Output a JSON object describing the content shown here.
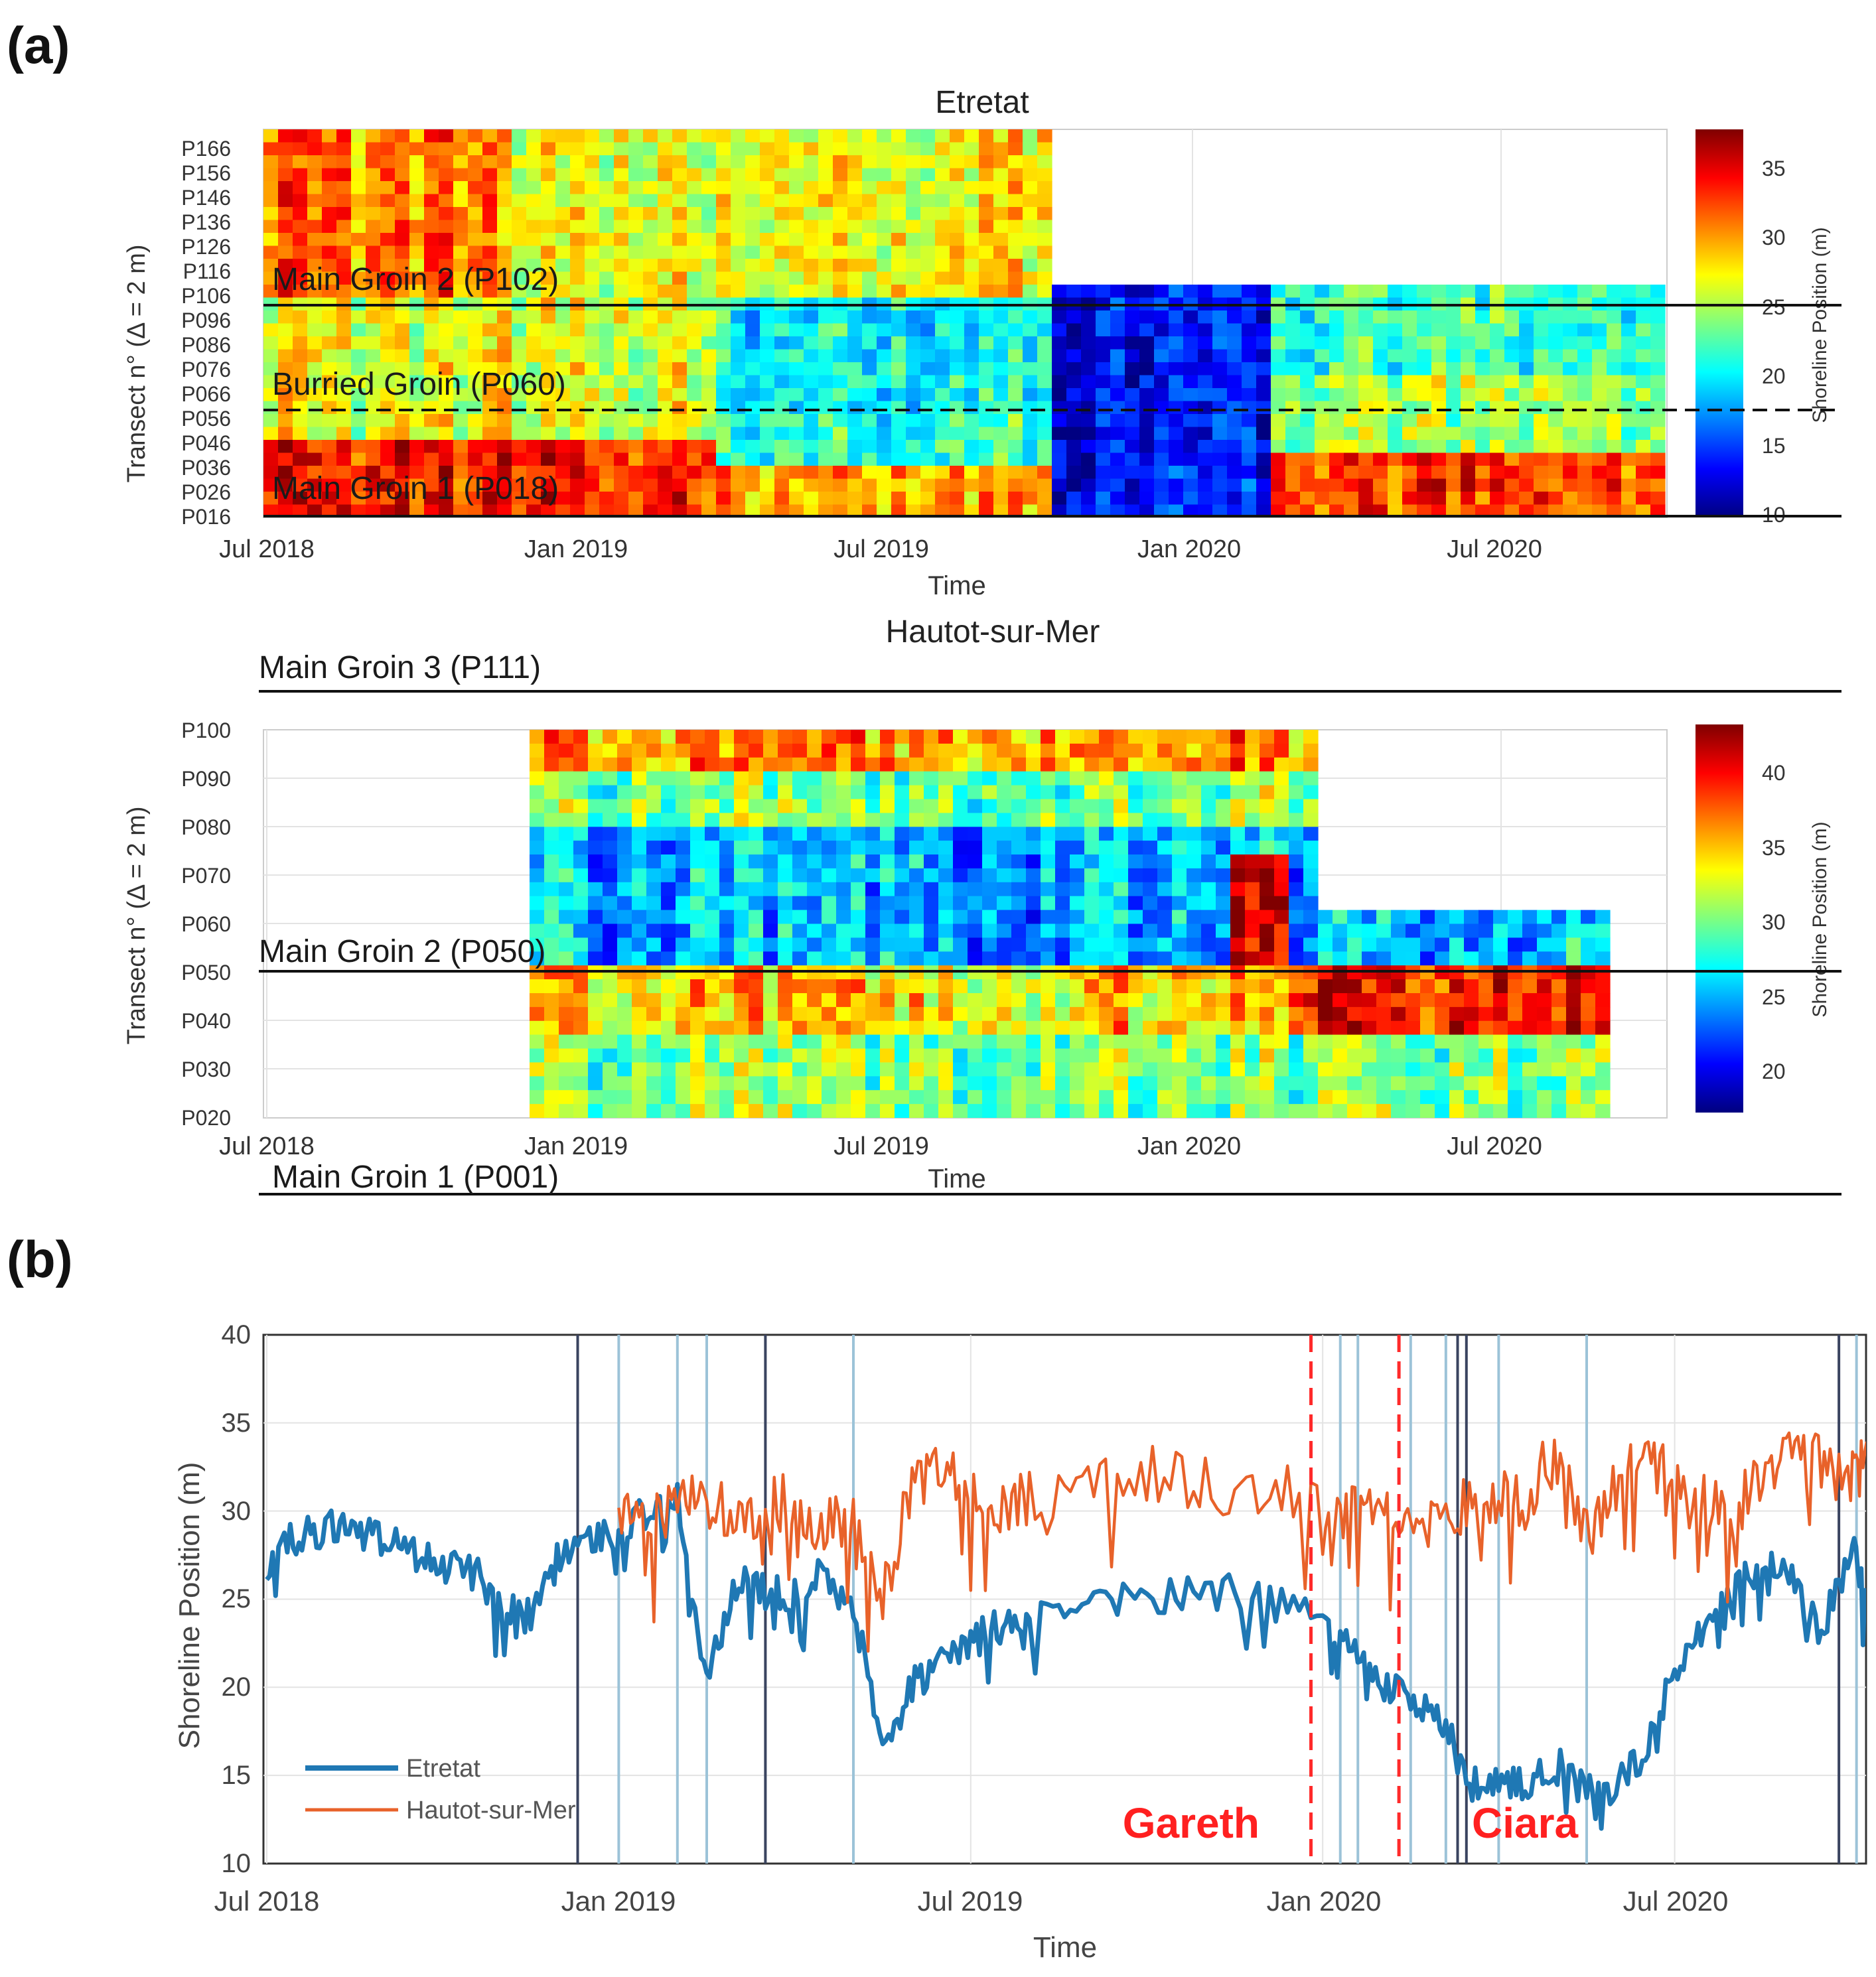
{
  "panel_labels": {
    "a": "(a)",
    "b": "(b)"
  },
  "colors": {
    "etretat_line": "#1f78b4",
    "hautot_line": "#e8622a",
    "storm_marker": "#ff2a2a",
    "event_line_dark": "#3a4460",
    "event_line_light": "#9cc3d8",
    "grid": "#e3e3e3"
  },
  "chart_data": [
    {
      "id": "etretat-heatmap",
      "type": "heatmap",
      "title": "Etretat",
      "xlabel": "Time",
      "ylabel": "Transect n° (Δ = 2 m)",
      "x_ticks": [
        "Jul 2018",
        "Jan 2019",
        "Jul 2019",
        "Jan 2020",
        "Jul 2020"
      ],
      "y_ticks": [
        "P016",
        "P026",
        "P036",
        "P046",
        "P056",
        "P066",
        "P076",
        "P086",
        "P096",
        "P106",
        "P116",
        "P126",
        "P136",
        "P146",
        "P156",
        "P166"
      ],
      "xlim": [
        "Jul 2018",
        "Nov 2020"
      ],
      "colorbar": {
        "label": "Shoreline Position (m)",
        "ticks": [
          10,
          15,
          20,
          25,
          30,
          35
        ],
        "range": [
          10,
          38
        ]
      },
      "annotations": [
        {
          "label": "Main Groin 2 (P102)",
          "transect": 102,
          "style": "solid"
        },
        {
          "label": "Burried Groin (P060)",
          "transect": 60,
          "style": "dashed"
        },
        {
          "label": "Main Groin 1 (P018)",
          "transect": 18,
          "style": "solid"
        }
      ]
    },
    {
      "id": "hautot-heatmap",
      "type": "heatmap",
      "title": "Hautot-sur-Mer",
      "xlabel": "Time",
      "ylabel": "Transect n° (Δ = 2 m)",
      "x_ticks": [
        "Jul 2018",
        "Jan 2019",
        "Jul 2019",
        "Jan 2020",
        "Jul 2020"
      ],
      "y_ticks": [
        "P020",
        "P030",
        "P040",
        "P050",
        "P060",
        "P070",
        "P080",
        "P090",
        "P100"
      ],
      "xlim": [
        "Jul 2018",
        "Nov 2020"
      ],
      "colorbar": {
        "label": "Shoreline Position (m)",
        "ticks": [
          20,
          25,
          30,
          35,
          40
        ],
        "range": [
          17,
          43
        ]
      },
      "annotations": [
        {
          "label": "Main Groin 3 (P111)",
          "transect": 111,
          "style": "solid"
        },
        {
          "label": "Main Groin 2 (P050)",
          "transect": 50,
          "style": "solid"
        },
        {
          "label": "Main Groin 1 (P001)",
          "transect": 1,
          "style": "solid"
        }
      ]
    },
    {
      "id": "shoreline-timeseries",
      "type": "line",
      "xlabel": "Time",
      "ylabel": "Shoreline Position (m)",
      "x_ticks": [
        "Jul 2018",
        "Jan 2019",
        "Jul 2019",
        "Jan 2020",
        "Jul 2020"
      ],
      "y_ticks": [
        10,
        15,
        20,
        25,
        30,
        35,
        40
      ],
      "ylim": [
        10,
        40
      ],
      "xlim_months": [
        0,
        27.3
      ],
      "legend_position": "bottom-left",
      "series": [
        {
          "name": "Etretat",
          "months": [
            0,
            0.5,
            1,
            1.5,
            2,
            2.5,
            3,
            3.5,
            4,
            4.5,
            5,
            5.5,
            6,
            6.5,
            7,
            7.5,
            8,
            8.5,
            9,
            9.5,
            10,
            10.5,
            11,
            11.5,
            12,
            12.5,
            13,
            14,
            15,
            16,
            17,
            18,
            18.5,
            19,
            19.5,
            20,
            20.5,
            21,
            21.5,
            22,
            22.5,
            23,
            23.5,
            24,
            24.5,
            25,
            25.5,
            26,
            26.5,
            27,
            27.3
          ],
          "values": [
            27,
            28.5,
            29,
            29,
            28.5,
            27.5,
            27,
            26.5,
            25,
            24,
            27.5,
            28,
            29,
            30,
            30.5,
            20.5,
            26,
            25.5,
            25,
            26.5,
            24.5,
            16.5,
            20,
            21.5,
            22.5,
            23.5,
            24,
            24.5,
            25,
            25.5,
            25,
            24,
            22,
            20,
            19.5,
            18.5,
            14.5,
            14.5,
            14.5,
            15.5,
            14,
            14.5,
            16,
            21,
            23,
            26,
            27,
            26,
            23,
            28,
            25
          ]
        },
        {
          "name": "Hautot-sur-Mer",
          "months": [
            6,
            6.5,
            7,
            7.5,
            8,
            8.5,
            9,
            9.5,
            10,
            10.5,
            11,
            11.5,
            12,
            12.5,
            13,
            14,
            15,
            16,
            17,
            18,
            18.5,
            19,
            19.5,
            20,
            20.5,
            21,
            21.5,
            22,
            22.5,
            23,
            23.5,
            24,
            24.5,
            25,
            25.5,
            26,
            26.5,
            27,
            27.3
          ],
          "values": [
            30,
            29,
            30,
            31,
            29,
            30,
            31,
            29,
            30,
            25.5,
            31,
            32,
            31,
            29.5,
            31,
            31.5,
            32,
            31.5,
            31,
            30.5,
            30,
            29.5,
            28.5,
            29,
            30.5,
            31,
            32,
            32.5,
            28.5,
            31,
            33,
            32.5,
            31,
            30,
            32,
            33,
            32.5,
            32,
            32.5
          ]
        }
      ],
      "storm_annotations": [
        {
          "label": "Gareth",
          "month": 17.8
        },
        {
          "label": "Ciara",
          "month": 19.3
        }
      ]
    }
  ]
}
